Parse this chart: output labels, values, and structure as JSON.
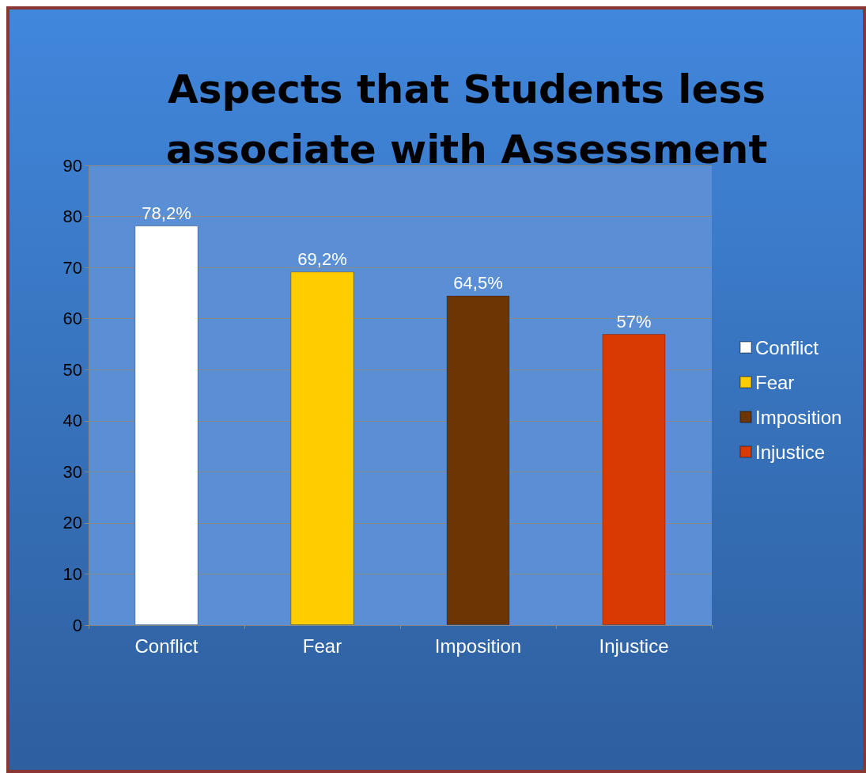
{
  "chart_data": {
    "type": "bar",
    "title": "Aspects that Students less\nassociate with Assessment",
    "categories": [
      "Conflict",
      "Fear",
      "Imposition",
      "Injustice"
    ],
    "series": [
      {
        "name": "Conflict",
        "color": "#ffffff",
        "values": [
          78.2,
          null,
          null,
          null
        ],
        "value_labels": [
          "78,2%",
          null,
          null,
          null
        ]
      },
      {
        "name": "Fear",
        "color": "#ffcc00",
        "values": [
          null,
          69.2,
          null,
          null
        ],
        "value_labels": [
          null,
          "69,2%",
          null,
          null
        ]
      },
      {
        "name": "Imposition",
        "color": "#6b3603",
        "values": [
          null,
          null,
          64.5,
          null
        ],
        "value_labels": [
          null,
          null,
          "64,5%",
          null
        ]
      },
      {
        "name": "Injustice",
        "color": "#d93a04",
        "values": [
          null,
          null,
          null,
          57
        ],
        "value_labels": [
          null,
          null,
          null,
          "57%"
        ]
      }
    ],
    "stacked": true,
    "ylim": [
      0,
      90
    ],
    "yticks": [
      0,
      10,
      20,
      30,
      40,
      50,
      60,
      70,
      80,
      90
    ],
    "grid": "y",
    "legend": "right"
  }
}
